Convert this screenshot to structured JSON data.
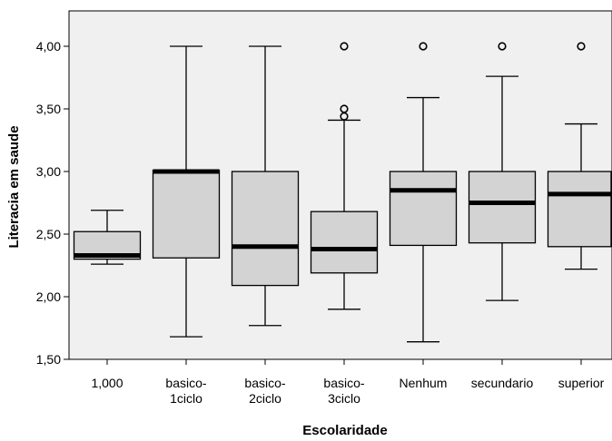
{
  "chart_data": {
    "type": "boxplot",
    "xlabel": "Escolaridade",
    "ylabel": "Literacia em saude",
    "ylim": [
      1.5,
      4.25
    ],
    "yticks": [
      1.5,
      2.0,
      2.5,
      3.0,
      3.5,
      4.0
    ],
    "ytick_labels": [
      "1,50",
      "2,00",
      "2,50",
      "3,00",
      "3,50",
      "4,00"
    ],
    "categories": [
      [
        "1,000"
      ],
      [
        "basico-",
        "1ciclo"
      ],
      [
        "basico-",
        "2ciclo"
      ],
      [
        "basico-",
        "3ciclo"
      ],
      [
        "Nenhum"
      ],
      [
        "secundario"
      ],
      [
        "superior"
      ]
    ],
    "boxes": [
      {
        "whisker_low": 2.26,
        "q1": 2.3,
        "median": 2.33,
        "q3": 2.52,
        "whisker_high": 2.69,
        "outliers": []
      },
      {
        "whisker_low": 1.68,
        "q1": 2.31,
        "median": 3.0,
        "q3": 3.01,
        "whisker_high": 4.0,
        "outliers": []
      },
      {
        "whisker_low": 1.77,
        "q1": 2.09,
        "median": 2.4,
        "q3": 3.0,
        "whisker_high": 4.0,
        "outliers": []
      },
      {
        "whisker_low": 1.9,
        "q1": 2.19,
        "median": 2.38,
        "q3": 2.68,
        "whisker_high": 3.41,
        "outliers": [
          3.44,
          3.5,
          4.0
        ]
      },
      {
        "whisker_low": 1.64,
        "q1": 2.41,
        "median": 2.85,
        "q3": 3.0,
        "whisker_high": 3.59,
        "outliers": [
          4.0
        ]
      },
      {
        "whisker_low": 1.97,
        "q1": 2.43,
        "median": 2.75,
        "q3": 3.0,
        "whisker_high": 3.76,
        "outliers": [
          4.0
        ]
      },
      {
        "whisker_low": 2.22,
        "q1": 2.4,
        "median": 2.82,
        "q3": 3.0,
        "whisker_high": 3.38,
        "outliers": [
          4.0
        ]
      }
    ],
    "colors": {
      "box_fill": "#d3d3d3",
      "stroke": "#000000",
      "median": "#000000"
    },
    "grid": false
  }
}
